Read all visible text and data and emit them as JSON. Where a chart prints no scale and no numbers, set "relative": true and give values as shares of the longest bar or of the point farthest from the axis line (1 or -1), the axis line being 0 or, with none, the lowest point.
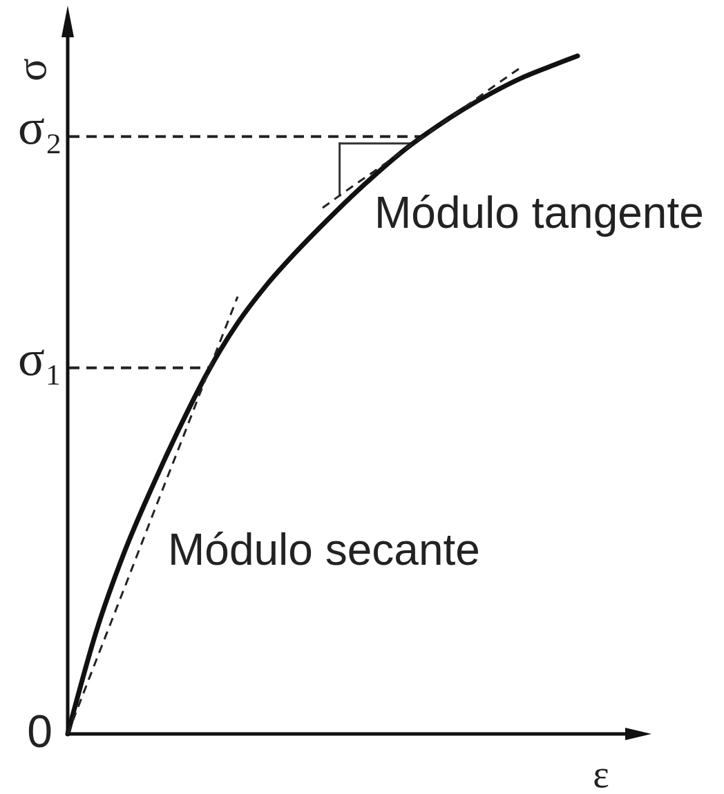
{
  "chart_data": {
    "type": "line",
    "xlabel": "ε",
    "ylabel": "σ",
    "relative": true,
    "categories": [
      null,
      null,
      null,
      null,
      null,
      null,
      null,
      null,
      null,
      null,
      null,
      null,
      null,
      null,
      null,
      null,
      null,
      null,
      null
    ],
    "series": [
      {
        "color": "#111111",
        "line_style": "solid",
        "values": [
          0,
          0.15,
          0.268,
          0.366,
          0.456,
          0.538,
          0.606,
          0.661,
          0.708,
          0.751,
          0.792,
          0.83,
          0.865,
          0.895,
          0.922,
          0.946,
          0.967,
          0.984,
          1
        ]
      },
      {
        "color": "#222222",
        "line_style": "dashed",
        "values": [
          0,
          0.108,
          0.215,
          0.323,
          0.43,
          0.538,
          0.645,
          null,
          null,
          null,
          null,
          null,
          null,
          null,
          null,
          null,
          null,
          null,
          null
        ]
      },
      {
        "color": "#222222",
        "line_style": "dashed",
        "values": [
          null,
          null,
          null,
          null,
          null,
          null,
          null,
          null,
          null,
          0.776,
          0.806,
          0.835,
          0.865,
          0.894,
          0.924,
          0.954,
          0.983,
          null,
          null
        ]
      }
    ],
    "ref_lines": [
      {
        "axis": "y",
        "value": 0.54,
        "label": "σ₁",
        "line_style": "dashed",
        "color": "#222222"
      },
      {
        "axis": "y",
        "value": 0.881,
        "label": "σ₂",
        "line_style": "dashed",
        "color": "#222222"
      }
    ],
    "annotations": [
      "Módulo tangente",
      "Módulo secante",
      "0"
    ]
  }
}
